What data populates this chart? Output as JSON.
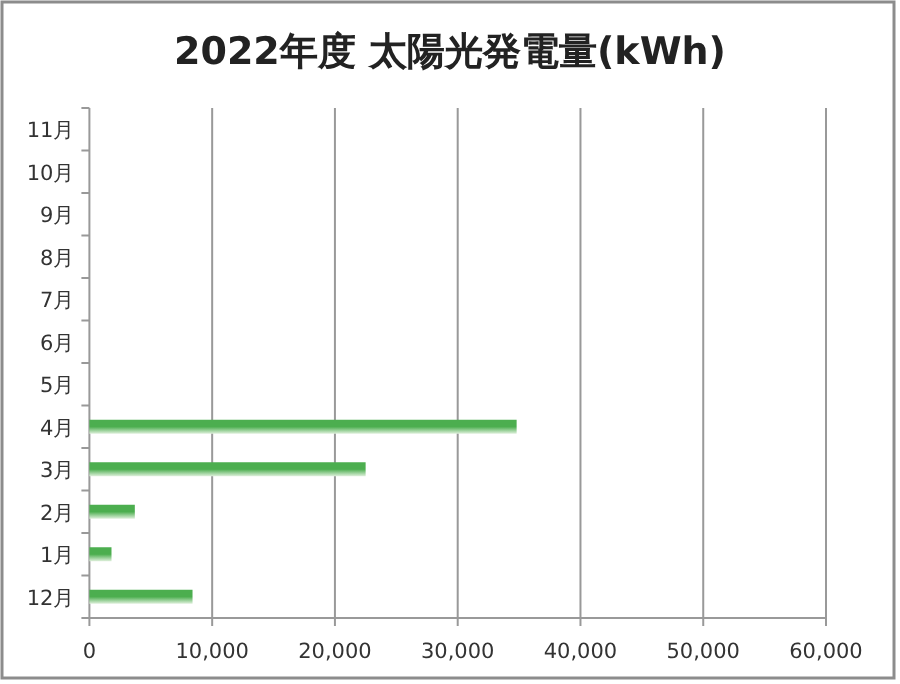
{
  "chart_data": {
    "type": "bar",
    "orientation": "horizontal",
    "title": "2022年度 太陽光発電量(kWh)",
    "categories": [
      "11月",
      "10月",
      "9月",
      "8月",
      "7月",
      "6月",
      "5月",
      "4月",
      "3月",
      "2月",
      "1月",
      "12月"
    ],
    "values": [
      null,
      null,
      null,
      null,
      null,
      null,
      null,
      34800,
      22500,
      3700,
      1800,
      8400
    ],
    "color": "#4cae4f",
    "xlim": [
      0,
      60000
    ],
    "xticks": [
      {
        "value": 0,
        "label": "0"
      },
      {
        "value": 10000,
        "label": "10,000"
      },
      {
        "value": 20000,
        "label": "20,000"
      },
      {
        "value": 30000,
        "label": "30,000"
      },
      {
        "value": 40000,
        "label": "40,000"
      },
      {
        "value": 50000,
        "label": "50,000"
      },
      {
        "value": 60000,
        "label": "60,000"
      }
    ],
    "grid": "x"
  }
}
